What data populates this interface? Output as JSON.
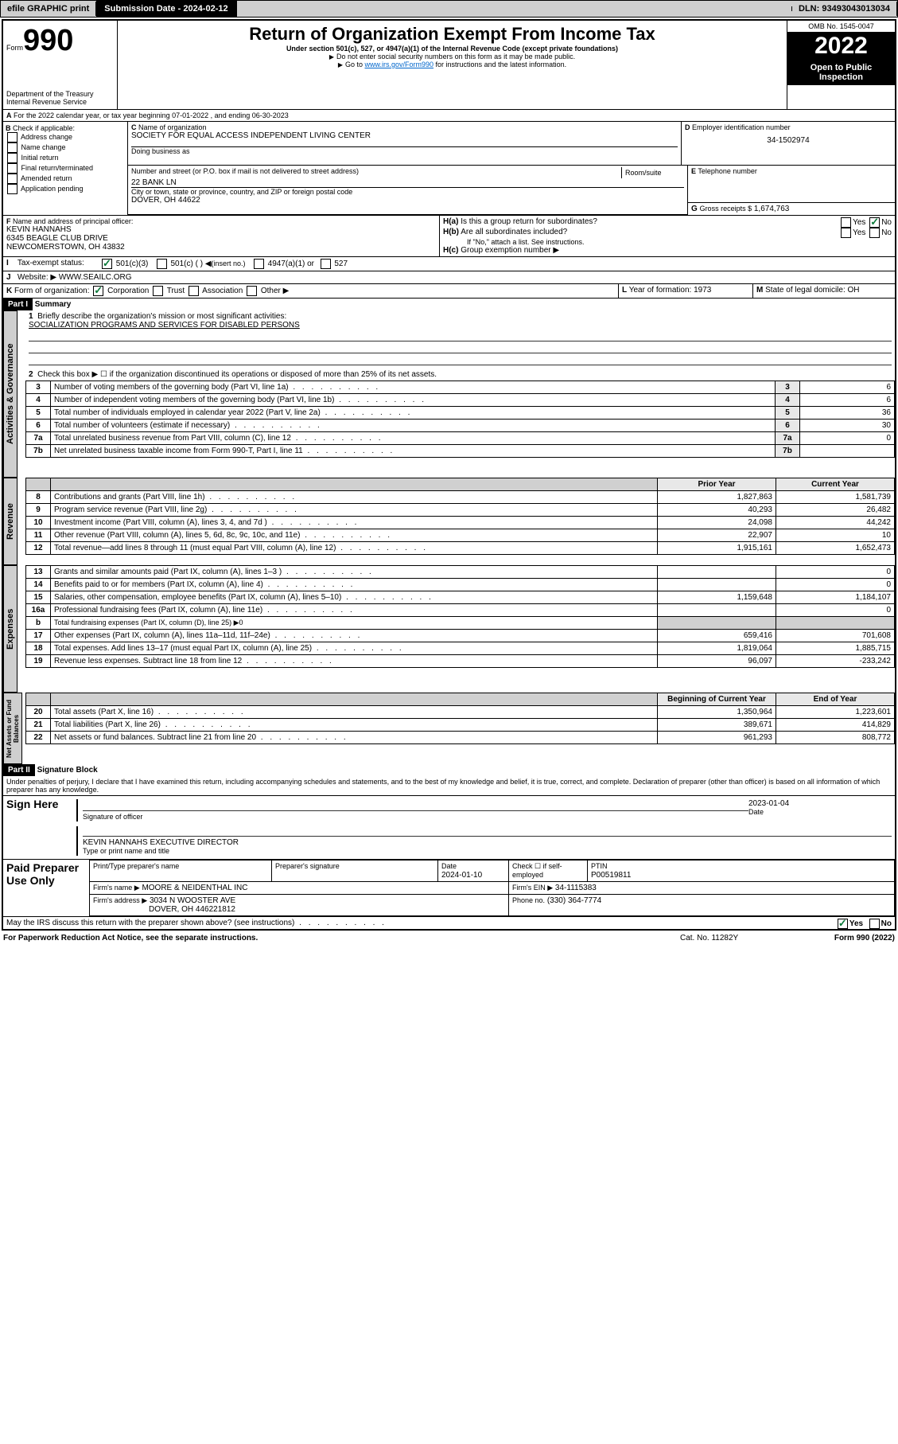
{
  "topbar": {
    "efile": "efile GRAPHIC print",
    "sub_lbl": "Submission Date - ",
    "sub_date": "2024-02-12",
    "dln_lbl": "DLN: ",
    "dln": "93493043013034"
  },
  "hdr": {
    "form_word": "Form",
    "form_num": "990",
    "dept": "Department of the Treasury",
    "irs": "Internal Revenue Service",
    "title": "Return of Organization Exempt From Income Tax",
    "sub1": "Under section 501(c), 527, or 4947(a)(1) of the Internal Revenue Code (except private foundations)",
    "sub2": "Do not enter social security numbers on this form as it may be made public.",
    "sub3_a": "Go to ",
    "sub3_link": "www.irs.gov/Form990",
    "sub3_b": " for instructions and the latest information.",
    "omb": "OMB No. 1545-0047",
    "year": "2022",
    "open": "Open to Public Inspection"
  },
  "A": {
    "text": "For the 2022 calendar year, or tax year beginning 07-01-2022    , and ending 06-30-2023"
  },
  "B": {
    "hdr": "Check if applicable:",
    "opts": [
      "Address change",
      "Name change",
      "Initial return",
      "Final return/terminated",
      "Amended return",
      "Application pending"
    ]
  },
  "C": {
    "lbl": "Name of organization",
    "name": "SOCIETY FOR EQUAL ACCESS INDEPENDENT LIVING CENTER",
    "dba_lbl": "Doing business as",
    "dba": "",
    "addr_lbl": "Number and street (or P.O. box if mail is not delivered to street address)",
    "room_lbl": "Room/suite",
    "addr": "22 BANK LN",
    "city_lbl": "City or town, state or province, country, and ZIP or foreign postal code",
    "city": "DOVER, OH  44622"
  },
  "D": {
    "lbl": "Employer identification number",
    "val": "34-1502974"
  },
  "E": {
    "lbl": "Telephone number",
    "val": ""
  },
  "G": {
    "lbl": "Gross receipts $",
    "val": "1,674,763"
  },
  "F": {
    "lbl": "Name and address of principal officer:",
    "name": "KEVIN HANNAHS",
    "addr1": "6345 BEAGLE CLUB DRIVE",
    "addr2": "NEWCOMERSTOWN, OH  43832"
  },
  "H": {
    "a": "Is this a group return for subordinates?",
    "b": "Are all subordinates included?",
    "note": "If \"No,\" attach a list. See instructions.",
    "c": "Group exemption number",
    "yes": "Yes",
    "no": "No"
  },
  "I": {
    "lbl": "Tax-exempt status:",
    "o1": "501(c)(3)",
    "o2": "501(c) (   )",
    "o2b": "(insert no.)",
    "o3": "4947(a)(1) or",
    "o4": "527"
  },
  "J": {
    "lbl": "Website:",
    "val": "WWW.SEAILC.ORG"
  },
  "K": {
    "lbl": "Form of organization:",
    "o1": "Corporation",
    "o2": "Trust",
    "o3": "Association",
    "o4": "Other"
  },
  "L": {
    "lbl": "Year of formation:",
    "val": "1973"
  },
  "M": {
    "lbl": "State of legal domicile:",
    "val": "OH"
  },
  "part1": {
    "hdr": "Part I",
    "title": "Summary",
    "l1": "Briefly describe the organization's mission or most significant activities:",
    "l1v": "SOCIALIZATION PROGRAMS AND SERVICES FOR DISABLED PERSONS",
    "l2": "Check this box ▶ ☐  if the organization discontinued its operations or disposed of more than 25% of its net assets.",
    "rows_gov": [
      {
        "n": "3",
        "t": "Number of voting members of the governing body (Part VI, line 1a)",
        "v": "6"
      },
      {
        "n": "4",
        "t": "Number of independent voting members of the governing body (Part VI, line 1b)",
        "v": "6"
      },
      {
        "n": "5",
        "t": "Total number of individuals employed in calendar year 2022 (Part V, line 2a)",
        "v": "36"
      },
      {
        "n": "6",
        "t": "Total number of volunteers (estimate if necessary)",
        "v": "30"
      },
      {
        "n": "7a",
        "t": "Total unrelated business revenue from Part VIII, column (C), line 12",
        "v": "0"
      },
      {
        "n": "7b",
        "t": "Net unrelated business taxable income from Form 990-T, Part I, line 11",
        "v": ""
      }
    ],
    "col_prior": "Prior Year",
    "col_curr": "Current Year",
    "rows_rev": [
      {
        "n": "8",
        "t": "Contributions and grants (Part VIII, line 1h)",
        "p": "1,827,863",
        "c": "1,581,739"
      },
      {
        "n": "9",
        "t": "Program service revenue (Part VIII, line 2g)",
        "p": "40,293",
        "c": "26,482"
      },
      {
        "n": "10",
        "t": "Investment income (Part VIII, column (A), lines 3, 4, and 7d )",
        "p": "24,098",
        "c": "44,242"
      },
      {
        "n": "11",
        "t": "Other revenue (Part VIII, column (A), lines 5, 6d, 8c, 9c, 10c, and 11e)",
        "p": "22,907",
        "c": "10"
      },
      {
        "n": "12",
        "t": "Total revenue—add lines 8 through 11 (must equal Part VIII, column (A), line 12)",
        "p": "1,915,161",
        "c": "1,652,473"
      }
    ],
    "rows_exp": [
      {
        "n": "13",
        "t": "Grants and similar amounts paid (Part IX, column (A), lines 1–3 )",
        "p": "",
        "c": "0"
      },
      {
        "n": "14",
        "t": "Benefits paid to or for members (Part IX, column (A), line 4)",
        "p": "",
        "c": "0"
      },
      {
        "n": "15",
        "t": "Salaries, other compensation, employee benefits (Part IX, column (A), lines 5–10)",
        "p": "1,159,648",
        "c": "1,184,107"
      },
      {
        "n": "16a",
        "t": "Professional fundraising fees (Part IX, column (A), line 11e)",
        "p": "",
        "c": "0"
      },
      {
        "n": "b",
        "t": "Total fundraising expenses (Part IX, column (D), line 25) ▶0",
        "p": "—",
        "c": "—"
      },
      {
        "n": "17",
        "t": "Other expenses (Part IX, column (A), lines 11a–11d, 11f–24e)",
        "p": "659,416",
        "c": "701,608"
      },
      {
        "n": "18",
        "t": "Total expenses. Add lines 13–17 (must equal Part IX, column (A), line 25)",
        "p": "1,819,064",
        "c": "1,885,715"
      },
      {
        "n": "19",
        "t": "Revenue less expenses. Subtract line 18 from line 12",
        "p": "96,097",
        "c": "-233,242"
      }
    ],
    "col_beg": "Beginning of Current Year",
    "col_end": "End of Year",
    "rows_net": [
      {
        "n": "20",
        "t": "Total assets (Part X, line 16)",
        "p": "1,350,964",
        "c": "1,223,601"
      },
      {
        "n": "21",
        "t": "Total liabilities (Part X, line 26)",
        "p": "389,671",
        "c": "414,829"
      },
      {
        "n": "22",
        "t": "Net assets or fund balances. Subtract line 21 from line 20",
        "p": "961,293",
        "c": "808,772"
      }
    ],
    "vtabs": {
      "gov": "Activities & Governance",
      "rev": "Revenue",
      "exp": "Expenses",
      "net": "Net Assets or Fund Balances"
    }
  },
  "part2": {
    "hdr": "Part II",
    "title": "Signature Block",
    "decl": "Under penalties of perjury, I declare that I have examined this return, including accompanying schedules and statements, and to the best of my knowledge and belief, it is true, correct, and complete. Declaration of preparer (other than officer) is based on all information of which preparer has any knowledge.",
    "sign_here": "Sign Here",
    "sig_off": "Signature of officer",
    "date_lbl": "Date",
    "date": "2023-01-04",
    "name_title": "KEVIN HANNAHS  EXECUTIVE DIRECTOR",
    "name_title_lbl": "Type or print name and title",
    "paid": "Paid Preparer Use Only",
    "pp_name_lbl": "Print/Type preparer's name",
    "pp_sig_lbl": "Preparer's signature",
    "pp_date_lbl": "Date",
    "pp_date": "2024-01-10",
    "pp_chk_lbl": "Check ☐ if self-employed",
    "ptin_lbl": "PTIN",
    "ptin": "P00519811",
    "firm_name_lbl": "Firm's name   ▶",
    "firm_name": "MOORE & NEIDENTHAL INC",
    "firm_ein_lbl": "Firm's EIN ▶",
    "firm_ein": "34-1115383",
    "firm_addr_lbl": "Firm's address ▶",
    "firm_addr1": "3034 N WOOSTER AVE",
    "firm_addr2": "DOVER, OH  446221812",
    "phone_lbl": "Phone no.",
    "phone": "(330) 364-7774",
    "may": "May the IRS discuss this return with the preparer shown above? (see instructions)",
    "yes": "Yes",
    "no": "No"
  },
  "footer": {
    "pra": "For Paperwork Reduction Act Notice, see the separate instructions.",
    "cat": "Cat. No. 11282Y",
    "form": "Form 990 (2022)"
  }
}
